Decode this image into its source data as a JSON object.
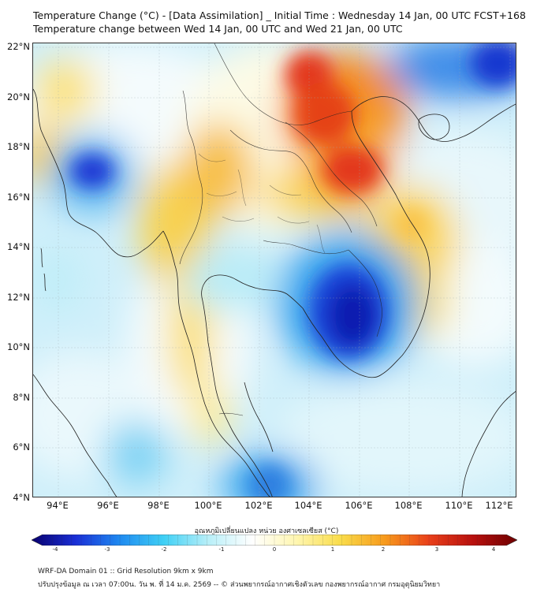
{
  "title_line1": "Temperature Change (°C) - [Data Assimilation] _ Initial Time : Wednesday 14 Jan, 00 UTC FCST+168",
  "title_line2": "Temperature change between Wed 14 Jan, 00 UTC and Wed 21 Jan, 00 UTC",
  "lat_labels": [
    "22°N",
    "20°N",
    "18°N",
    "16°N",
    "14°N",
    "12°N",
    "10°N",
    "8°N",
    "6°N",
    "4°N"
  ],
  "lon_labels": [
    "94°E",
    "96°E",
    "98°E",
    "100°E",
    "102°E",
    "104°E",
    "106°E",
    "108°E",
    "110°E",
    "112°E"
  ],
  "colorbar": {
    "title": "อุณหภูมิเปลี่ยนแปลง หน่วย องศาเซลเซียส (°C)",
    "ticks": [
      "-4",
      "-3",
      "-2",
      "-1",
      "0",
      "1",
      "2",
      "3",
      "4"
    ],
    "colors": [
      "#08006e",
      "#1a2fd6",
      "#1f8af0",
      "#3fd0f5",
      "#b8eff8",
      "#ffffff",
      "#fff6b0",
      "#f9dc4a",
      "#f79a1c",
      "#e9401a",
      "#b8100e",
      "#6e0000"
    ]
  },
  "footer_line1": "WRF-DA Domain 01 :: Grid Resolution 9km x 9km",
  "footer_line2": "ปรับปรุงข้อมูล ณ เวลา 07:00น. วัน พ. ที่ 14 ม.ค. 2569 -- © ส่วนพยากรณ์อากาศเชิงตัวเลข กองพยากรณ์อากาศ กรมอุตุนิยมวิทยา"
}
